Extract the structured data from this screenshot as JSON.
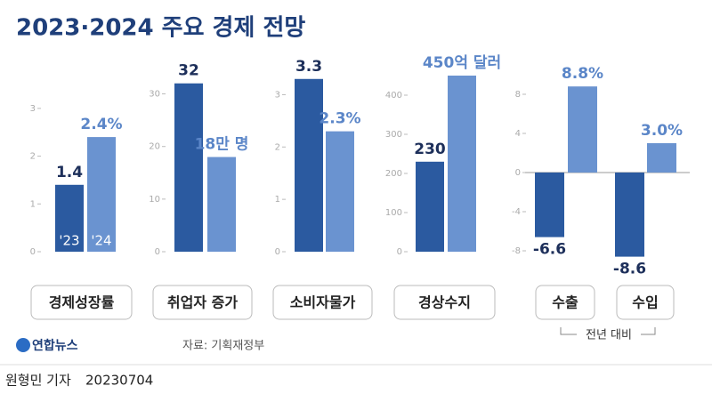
{
  "title": "2023·2024 주요 경제 전망",
  "chart_data": [
    {
      "type": "bar",
      "label": "경제성장률",
      "categories": [
        "'23",
        "'24"
      ],
      "values": [
        1.4,
        2.4
      ],
      "value_labels": [
        "1.4",
        "2.4%"
      ],
      "colors": [
        "#2b5aa0",
        "#6a93d0"
      ],
      "ylim": [
        0,
        3.5
      ],
      "yticks": [
        0,
        1,
        2,
        3
      ]
    },
    {
      "type": "bar",
      "label": "취업자 증가",
      "values": [
        32,
        18
      ],
      "value_labels": [
        "32",
        "18만 명"
      ],
      "colors": [
        "#2b5aa0",
        "#6a93d0"
      ],
      "ylim": [
        0,
        35
      ],
      "yticks": [
        0,
        10,
        20,
        30
      ]
    },
    {
      "type": "bar",
      "label": "소비자물가",
      "values": [
        3.3,
        2.3
      ],
      "value_labels": [
        "3.3",
        "2.3%"
      ],
      "colors": [
        "#2b5aa0",
        "#6a93d0"
      ],
      "ylim": [
        0,
        3.5
      ],
      "yticks": [
        0,
        1,
        2,
        3
      ]
    },
    {
      "type": "bar",
      "label": "경상수지",
      "values": [
        230,
        450
      ],
      "value_labels": [
        "230",
        "450억 달러"
      ],
      "colors": [
        "#2b5aa0",
        "#6a93d0"
      ],
      "ylim": [
        0,
        500
      ],
      "yticks": [
        0,
        100,
        200,
        300,
        400
      ]
    },
    {
      "type": "grouped_bar",
      "label": "전년 대비",
      "categories": [
        "수출",
        "수입"
      ],
      "series": [
        {
          "color": "#2b5aa0",
          "values": [
            -6.6,
            -8.6
          ],
          "value_labels": [
            "-6.6",
            "-8.6"
          ]
        },
        {
          "color": "#6a93d0",
          "values": [
            8.8,
            3.0
          ],
          "value_labels": [
            "8.8%",
            "3.0%"
          ]
        }
      ],
      "ylim": [
        -10,
        10
      ],
      "yticks": [
        -8,
        -4,
        0,
        4,
        8
      ]
    }
  ],
  "logo": "연합뉴스",
  "source": "자료: 기획재정부",
  "byline": "원형민 기자",
  "date": "20230704"
}
